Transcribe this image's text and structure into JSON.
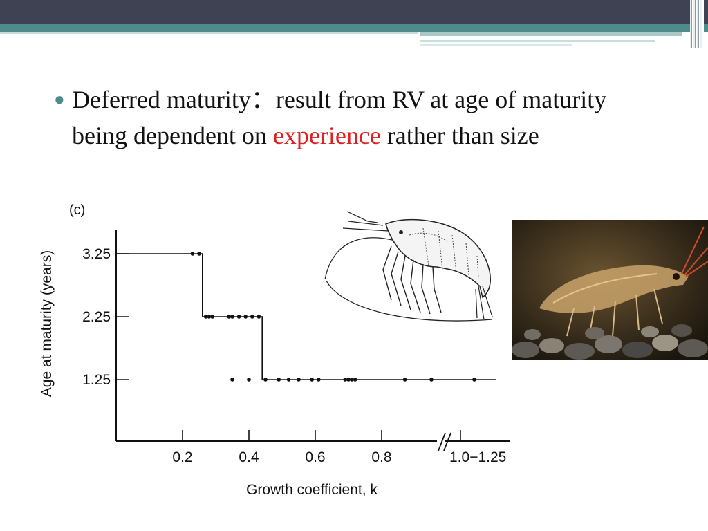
{
  "slide": {
    "bullet": {
      "before": "Deferred maturity：result from RV at age of maturity being dependent on ",
      "highlight": "experience",
      "after": " rather than size"
    },
    "colors": {
      "header_dark": "#3f4252",
      "header_teal": "#4f8b8b",
      "highlight": "#e02020"
    },
    "images": {
      "drawing": "shrimp-line-drawing",
      "photo": "shrimp-photograph"
    }
  },
  "chart_data": {
    "type": "scatter",
    "panel_label": "(c)",
    "xlabel": "Growth coefficient, k",
    "ylabel": "Age at maturity (years)",
    "x_ticks": [
      "0.2",
      "0.4",
      "0.6",
      "0.8",
      "1.0−1.25"
    ],
    "y_ticks": [
      "1.25",
      "2.25",
      "3.25"
    ],
    "axis_break": true,
    "grid": false,
    "xlim": [
      0,
      1.1
    ],
    "series": [
      {
        "values": [
          {
            "x": 0.23,
            "y": 3.25
          },
          {
            "x": 0.25,
            "y": 3.25
          },
          {
            "x": 0.27,
            "y": 2.25
          },
          {
            "x": 0.28,
            "y": 2.25
          },
          {
            "x": 0.29,
            "y": 2.25
          },
          {
            "x": 0.34,
            "y": 2.25
          },
          {
            "x": 0.35,
            "y": 2.25
          },
          {
            "x": 0.37,
            "y": 2.25
          },
          {
            "x": 0.39,
            "y": 2.25
          },
          {
            "x": 0.41,
            "y": 2.25
          },
          {
            "x": 0.43,
            "y": 2.25
          },
          {
            "x": 0.35,
            "y": 1.25
          },
          {
            "x": 0.4,
            "y": 1.25
          },
          {
            "x": 0.45,
            "y": 1.25
          },
          {
            "x": 0.49,
            "y": 1.25
          },
          {
            "x": 0.52,
            "y": 1.25
          },
          {
            "x": 0.55,
            "y": 1.25
          },
          {
            "x": 0.59,
            "y": 1.25
          },
          {
            "x": 0.61,
            "y": 1.25
          },
          {
            "x": 0.69,
            "y": 1.25
          },
          {
            "x": 0.7,
            "y": 1.25
          },
          {
            "x": 0.71,
            "y": 1.25
          },
          {
            "x": 0.72,
            "y": 1.25
          },
          {
            "x": 0.87,
            "y": 1.25
          },
          {
            "x": 0.95,
            "y": 1.25
          },
          {
            "x": 1.02,
            "y": 1.25
          }
        ]
      }
    ],
    "step_line": [
      {
        "x": 0.0,
        "y": 3.25
      },
      {
        "x": 0.22,
        "y": 3.25
      },
      {
        "x": 0.26,
        "y": 3.25
      },
      {
        "x": 0.26,
        "y": 2.25
      },
      {
        "x": 0.44,
        "y": 2.25
      },
      {
        "x": 0.44,
        "y": 1.25
      },
      {
        "x": 1.06,
        "y": 1.25
      }
    ]
  }
}
